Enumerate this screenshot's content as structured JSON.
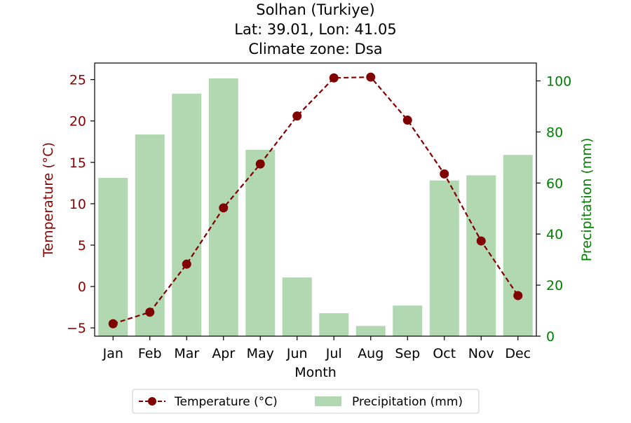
{
  "chart_data": {
    "type": "bar",
    "title_lines": [
      "Solhan (Turkiye)",
      "Lat: 39.01, Lon: 41.05",
      "Climate zone: Dsa"
    ],
    "xlabel": "Month",
    "ylabel_left": "Temperature (°C)",
    "ylabel_right": "Precipitation (mm)",
    "categories": [
      "Jan",
      "Feb",
      "Mar",
      "Apr",
      "May",
      "Jun",
      "Jul",
      "Aug",
      "Sep",
      "Oct",
      "Nov",
      "Dec"
    ],
    "series": [
      {
        "name": "Precipitation (mm)",
        "type": "bar",
        "axis": "right",
        "color": "#b2d8b2",
        "values": [
          62,
          79,
          95,
          101,
          73,
          23,
          9,
          4,
          12,
          61,
          63,
          71
        ]
      },
      {
        "name": "Temperature (°C)",
        "type": "line",
        "axis": "left",
        "color": "#800000",
        "linestyle": "dashed",
        "marker": "circle",
        "values": [
          -4.5,
          -3.1,
          2.7,
          9.5,
          14.8,
          20.6,
          25.2,
          25.3,
          20.1,
          13.6,
          5.5,
          -1.1
        ]
      }
    ],
    "ylim_left": [
      -6,
      27
    ],
    "ylim_right": [
      0,
      107
    ],
    "yticks_left": [
      -5,
      0,
      5,
      10,
      15,
      20,
      25
    ],
    "yticks_right": [
      0,
      20,
      40,
      60,
      80,
      100
    ],
    "left_axis_color": "#8b0000",
    "right_axis_color": "#008000",
    "legend_position": "bottom-center",
    "legend_entries": [
      "Temperature (°C)",
      "Precipitation (mm)"
    ],
    "grid": false
  }
}
